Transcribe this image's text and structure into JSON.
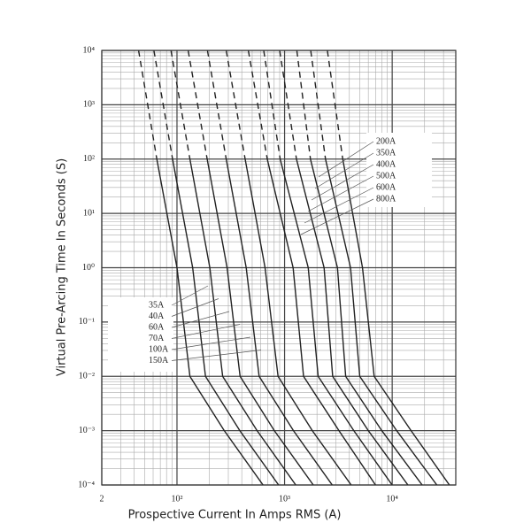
{
  "chart_data": {
    "type": "line",
    "x_label": "Prospective Current In Amps RMS (A)",
    "y_label": "Virtual Pre-Arcing Time In Seconds (S)",
    "log_x": true,
    "log_y": true,
    "grid": true,
    "xlim": [
      20,
      39000
    ],
    "ylim": [
      0.0001,
      10000
    ],
    "xticks": [
      {
        "value": 20,
        "label": "2"
      },
      {
        "value": 100,
        "label": "10²"
      },
      {
        "value": 1000,
        "label": "10³"
      },
      {
        "value": 10000,
        "label": "10⁴"
      }
    ],
    "yticks": [
      {
        "value": 10000,
        "label": "10⁴"
      },
      {
        "value": 1000,
        "label": "10³"
      },
      {
        "value": 100,
        "label": "10²"
      },
      {
        "value": 10,
        "label": "10¹"
      },
      {
        "value": 1,
        "label": "10⁰"
      },
      {
        "value": 0.1,
        "label": "10⁻¹"
      },
      {
        "value": 0.01,
        "label": "10⁻²"
      },
      {
        "value": 0.001,
        "label": "10⁻³"
      },
      {
        "value": 0.0001,
        "label": "10⁻⁴"
      }
    ],
    "y": [
      10000,
      100,
      1,
      0.01,
      0.001,
      0.0001
    ],
    "series": [
      {
        "name": "35A",
        "color": "#222222",
        "x": [
          44,
          65,
          100,
          132,
          275,
          630
        ]
      },
      {
        "name": "40A",
        "color": "#222222",
        "x": [
          61,
          91,
          140,
          184,
          384,
          880
        ]
      },
      {
        "name": "60A",
        "color": "#222222",
        "x": [
          88,
          132,
          202,
          266,
          555,
          1270
        ]
      },
      {
        "name": "70A",
        "color": "#222222",
        "x": [
          127,
          191,
          292,
          386,
          804,
          1850
        ]
      },
      {
        "name": "100A",
        "color": "#222222",
        "x": [
          192,
          287,
          440,
          580,
          1210,
          2770
        ]
      },
      {
        "name": "150A",
        "color": "#222222",
        "x": [
          287,
          430,
          659,
          870,
          1810,
          4160
        ]
      },
      {
        "name": "200A",
        "color": "#222222",
        "x": [
          460,
          690,
          1200,
          1500,
          3200,
          7000
        ]
      },
      {
        "name": "350A",
        "color": "#222222",
        "x": [
          640,
          910,
          1660,
          2050,
          4400,
          10000
        ]
      },
      {
        "name": "400A",
        "color": "#222222",
        "x": [
          900,
          1290,
          2330,
          2800,
          6000,
          14000
        ]
      },
      {
        "name": "500A",
        "color": "#222222",
        "x": [
          1300,
          1740,
          3100,
          3700,
          8000,
          19000
        ]
      },
      {
        "name": "600A",
        "color": "#222222",
        "x": [
          1750,
          2400,
          4100,
          5000,
          11000,
          26000
        ]
      },
      {
        "name": "800A",
        "color": "#222222",
        "x": [
          2500,
          3470,
          5300,
          6800,
          15000,
          34000
        ]
      }
    ]
  }
}
